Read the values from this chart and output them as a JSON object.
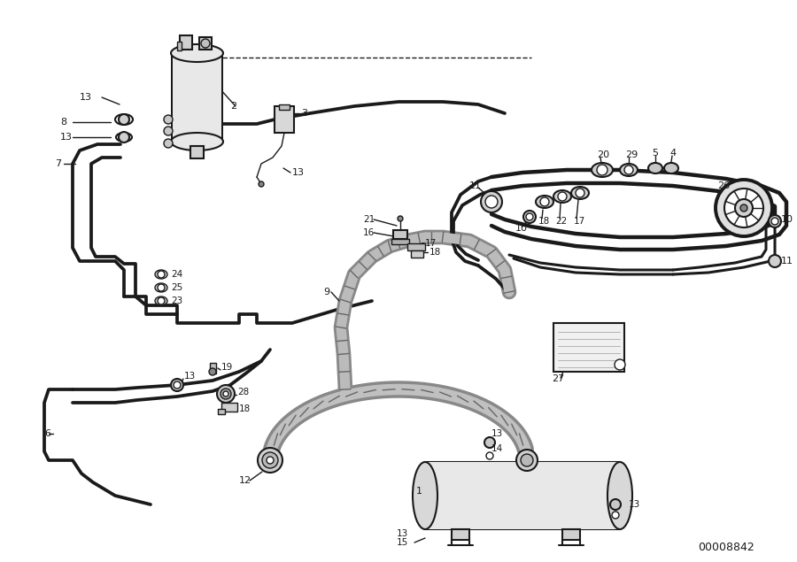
{
  "bg_color": "#ffffff",
  "line_color": "#1a1a1a",
  "part_number": "00008842",
  "lw_pipe": 2.2,
  "lw_med": 1.5,
  "lw_thin": 1.0,
  "lw_thick": 2.8
}
